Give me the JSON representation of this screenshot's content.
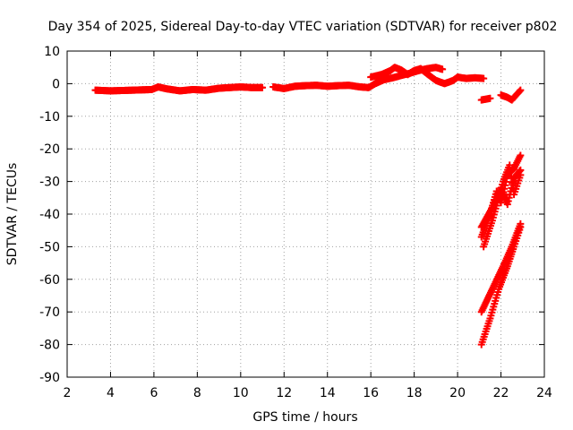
{
  "chart_data": {
    "type": "scatter",
    "title": "Day 354 of 2025, Sidereal Day-to-day VTEC variation (SDTVAR) for receiver p802",
    "xlabel": "GPS time / hours",
    "ylabel": "SDTVAR / TECUs",
    "xlim": [
      2,
      24
    ],
    "ylim": [
      -90,
      10
    ],
    "xticks": [
      2,
      4,
      6,
      8,
      10,
      12,
      14,
      16,
      18,
      20,
      22,
      24
    ],
    "yticks": [
      10,
      0,
      -10,
      -20,
      -30,
      -40,
      -50,
      -60,
      -70,
      -80,
      -90
    ],
    "grid": true,
    "marker_color": "#ff0000",
    "series": [
      {
        "segments": [
          [
            [
              3.3,
              -2.0
            ],
            [
              4.0,
              -2.2
            ],
            [
              5.0,
              -2.0
            ],
            [
              5.9,
              -1.8
            ],
            [
              6.2,
              -1.0
            ],
            [
              6.6,
              -1.6
            ],
            [
              7.2,
              -2.2
            ],
            [
              7.8,
              -1.8
            ],
            [
              8.4,
              -2.0
            ],
            [
              9.0,
              -1.4
            ],
            [
              9.5,
              -1.2
            ],
            [
              10.0,
              -1.0
            ],
            [
              10.5,
              -1.2
            ],
            [
              11.0,
              -1.2
            ]
          ],
          [
            [
              11.5,
              -1.0
            ],
            [
              12.0,
              -1.5
            ],
            [
              12.5,
              -0.8
            ],
            [
              13.0,
              -0.6
            ],
            [
              13.5,
              -0.5
            ],
            [
              14.0,
              -0.8
            ],
            [
              14.5,
              -0.6
            ],
            [
              15.0,
              -0.5
            ],
            [
              15.5,
              -1.0
            ],
            [
              15.9,
              -1.2
            ],
            [
              16.2,
              0.0
            ],
            [
              16.6,
              1.2
            ],
            [
              17.0,
              1.8
            ],
            [
              17.4,
              2.5
            ],
            [
              17.8,
              3.2
            ],
            [
              18.2,
              4.0
            ],
            [
              18.6,
              4.6
            ],
            [
              19.0,
              5.0
            ],
            [
              19.3,
              4.4
            ]
          ],
          [
            [
              16.0,
              2.0
            ],
            [
              16.5,
              2.8
            ],
            [
              16.9,
              4.0
            ],
            [
              17.1,
              5.0
            ],
            [
              17.4,
              4.2
            ],
            [
              17.7,
              2.8
            ],
            [
              18.0,
              4.0
            ],
            [
              18.3,
              4.6
            ],
            [
              18.6,
              3.0
            ],
            [
              19.0,
              1.0
            ],
            [
              19.4,
              0.0
            ],
            [
              19.8,
              1.0
            ],
            [
              20.0,
              2.0
            ],
            [
              20.4,
              1.6
            ],
            [
              20.8,
              1.8
            ],
            [
              21.2,
              1.6
            ]
          ],
          [
            [
              21.1,
              -5.0
            ],
            [
              21.5,
              -4.5
            ]
          ],
          [
            [
              22.0,
              -3.5
            ],
            [
              22.3,
              -4.2
            ],
            [
              22.5,
              -5.0
            ],
            [
              22.7,
              -3.5
            ],
            [
              22.9,
              -2.0
            ]
          ],
          [
            [
              21.1,
              -47.0
            ],
            [
              21.5,
              -40.0
            ],
            [
              21.8,
              -33.0
            ],
            [
              22.0,
              -36.5
            ],
            [
              22.3,
              -28.0
            ],
            [
              22.6,
              -26.0
            ],
            [
              22.9,
              -22.0
            ]
          ],
          [
            [
              21.1,
              -44.0
            ],
            [
              21.6,
              -38.0
            ],
            [
              22.0,
              -32.0
            ],
            [
              22.3,
              -37.0
            ],
            [
              22.6,
              -29.0
            ],
            [
              22.9,
              -26.5
            ]
          ],
          [
            [
              21.2,
              -50.0
            ],
            [
              21.6,
              -42.0
            ],
            [
              22.1,
              -30.0
            ],
            [
              22.4,
              -25.0
            ],
            [
              22.6,
              -34.0
            ],
            [
              22.9,
              -28.0
            ]
          ],
          [
            [
              21.1,
              -70.0
            ],
            [
              21.6,
              -63.0
            ],
            [
              22.1,
              -56.0
            ],
            [
              22.5,
              -50.0
            ],
            [
              22.9,
              -43.0
            ]
          ],
          [
            [
              21.1,
              -80.0
            ],
            [
              21.5,
              -72.0
            ],
            [
              21.9,
              -63.0
            ],
            [
              22.3,
              -56.0
            ],
            [
              22.6,
              -50.0
            ],
            [
              22.9,
              -44.0
            ]
          ]
        ]
      }
    ]
  }
}
